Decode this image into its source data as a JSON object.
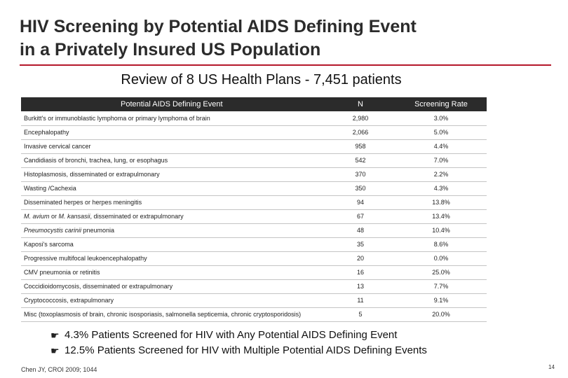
{
  "slide": {
    "title_line1": "HIV Screening by Potential AIDS Defining Event",
    "title_line2": "in a Privately Insured US Population",
    "subtitle": "Review of 8 US Health Plans - 7,451 patients",
    "citation": "Chen JY, CROI 2009; 1044",
    "page_number": "14",
    "accent_color": "#b5172a"
  },
  "table": {
    "headers": {
      "event": "Potential AIDS Defining Event",
      "n": "N",
      "rate": "Screening Rate"
    },
    "rows": [
      {
        "event": "Burkitt's or immunoblastic lymphoma or primary lymphoma of brain",
        "n": "2,980",
        "rate": "3.0%"
      },
      {
        "event": "Encephalopathy",
        "n": "2,066",
        "rate": "5.0%"
      },
      {
        "event": "Invasive cervical cancer",
        "n": "958",
        "rate": "4.4%"
      },
      {
        "event": "Candidiasis of bronchi, trachea, lung, or esophagus",
        "n": "542",
        "rate": "7.0%"
      },
      {
        "event": "Histoplasmosis, disseminated or extrapulmonary",
        "n": "370",
        "rate": "2.2%"
      },
      {
        "event": "Wasting /Cachexia",
        "n": "350",
        "rate": "4.3%"
      },
      {
        "event": "Disseminated herpes or herpes meningitis",
        "n": "94",
        "rate": "13.8%"
      },
      {
        "event_italic_1": "M. avium",
        "event_mid": " or ",
        "event_italic_2": "M. kansasii",
        "event_rest": ", disseminated or extrapulmonary",
        "n": "67",
        "rate": "13.4%"
      },
      {
        "event_italic_1": "Pneumocystis carinii",
        "event_rest": " pneumonia",
        "n": "48",
        "rate": "10.4%"
      },
      {
        "event": "Kaposi's sarcoma",
        "n": "35",
        "rate": "8.6%"
      },
      {
        "event": "Progressive multifocal leukoencephalopathy",
        "n": "20",
        "rate": "0.0%"
      },
      {
        "event": "CMV pneumonia or retinitis",
        "n": "16",
        "rate": "25.0%"
      },
      {
        "event": "Coccidioidomycosis, disseminated or extrapulmonary",
        "n": "13",
        "rate": "7.7%"
      },
      {
        "event": "Cryptococcosis, extrapulmonary",
        "n": "11",
        "rate": "9.1%"
      },
      {
        "event": "Misc (toxoplasmosis of brain, chronic isosporiasis, salmonella septicemia, chronic cryptosporidosis)",
        "n": "5",
        "rate": "20.0%"
      }
    ]
  },
  "bullets": {
    "mark": "☛",
    "items": [
      "4.3% Patients Screened for HIV with Any Potential AIDS Defining Event",
      "12.5% Patients Screened for HIV with Multiple Potential AIDS Defining Events"
    ]
  }
}
